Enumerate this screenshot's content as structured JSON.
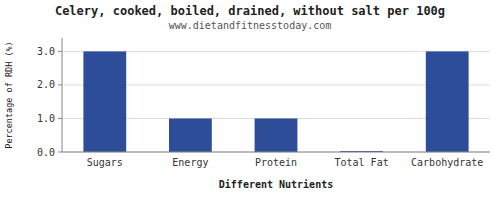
{
  "chart_data": {
    "type": "bar",
    "title": "Celery, cooked, boiled, drained, without salt per 100g",
    "subtitle": "www.dietandfitnesstoday.com",
    "xlabel": "Different Nutrients",
    "ylabel": "Percentage of RDH (%)",
    "categories": [
      "Sugars",
      "Energy",
      "Protein",
      "Total Fat",
      "Carbohydrate"
    ],
    "values": [
      3.0,
      1.0,
      1.0,
      0.03,
      3.0
    ],
    "color": "#2e4d99",
    "ylim": [
      0,
      3.4
    ],
    "yticks": [
      {
        "value": 0.0,
        "label": "0.0"
      },
      {
        "value": 1.0,
        "label": "1.0"
      },
      {
        "value": 2.0,
        "label": "2.0"
      },
      {
        "value": 3.0,
        "label": "3.0"
      }
    ],
    "grid": true
  }
}
